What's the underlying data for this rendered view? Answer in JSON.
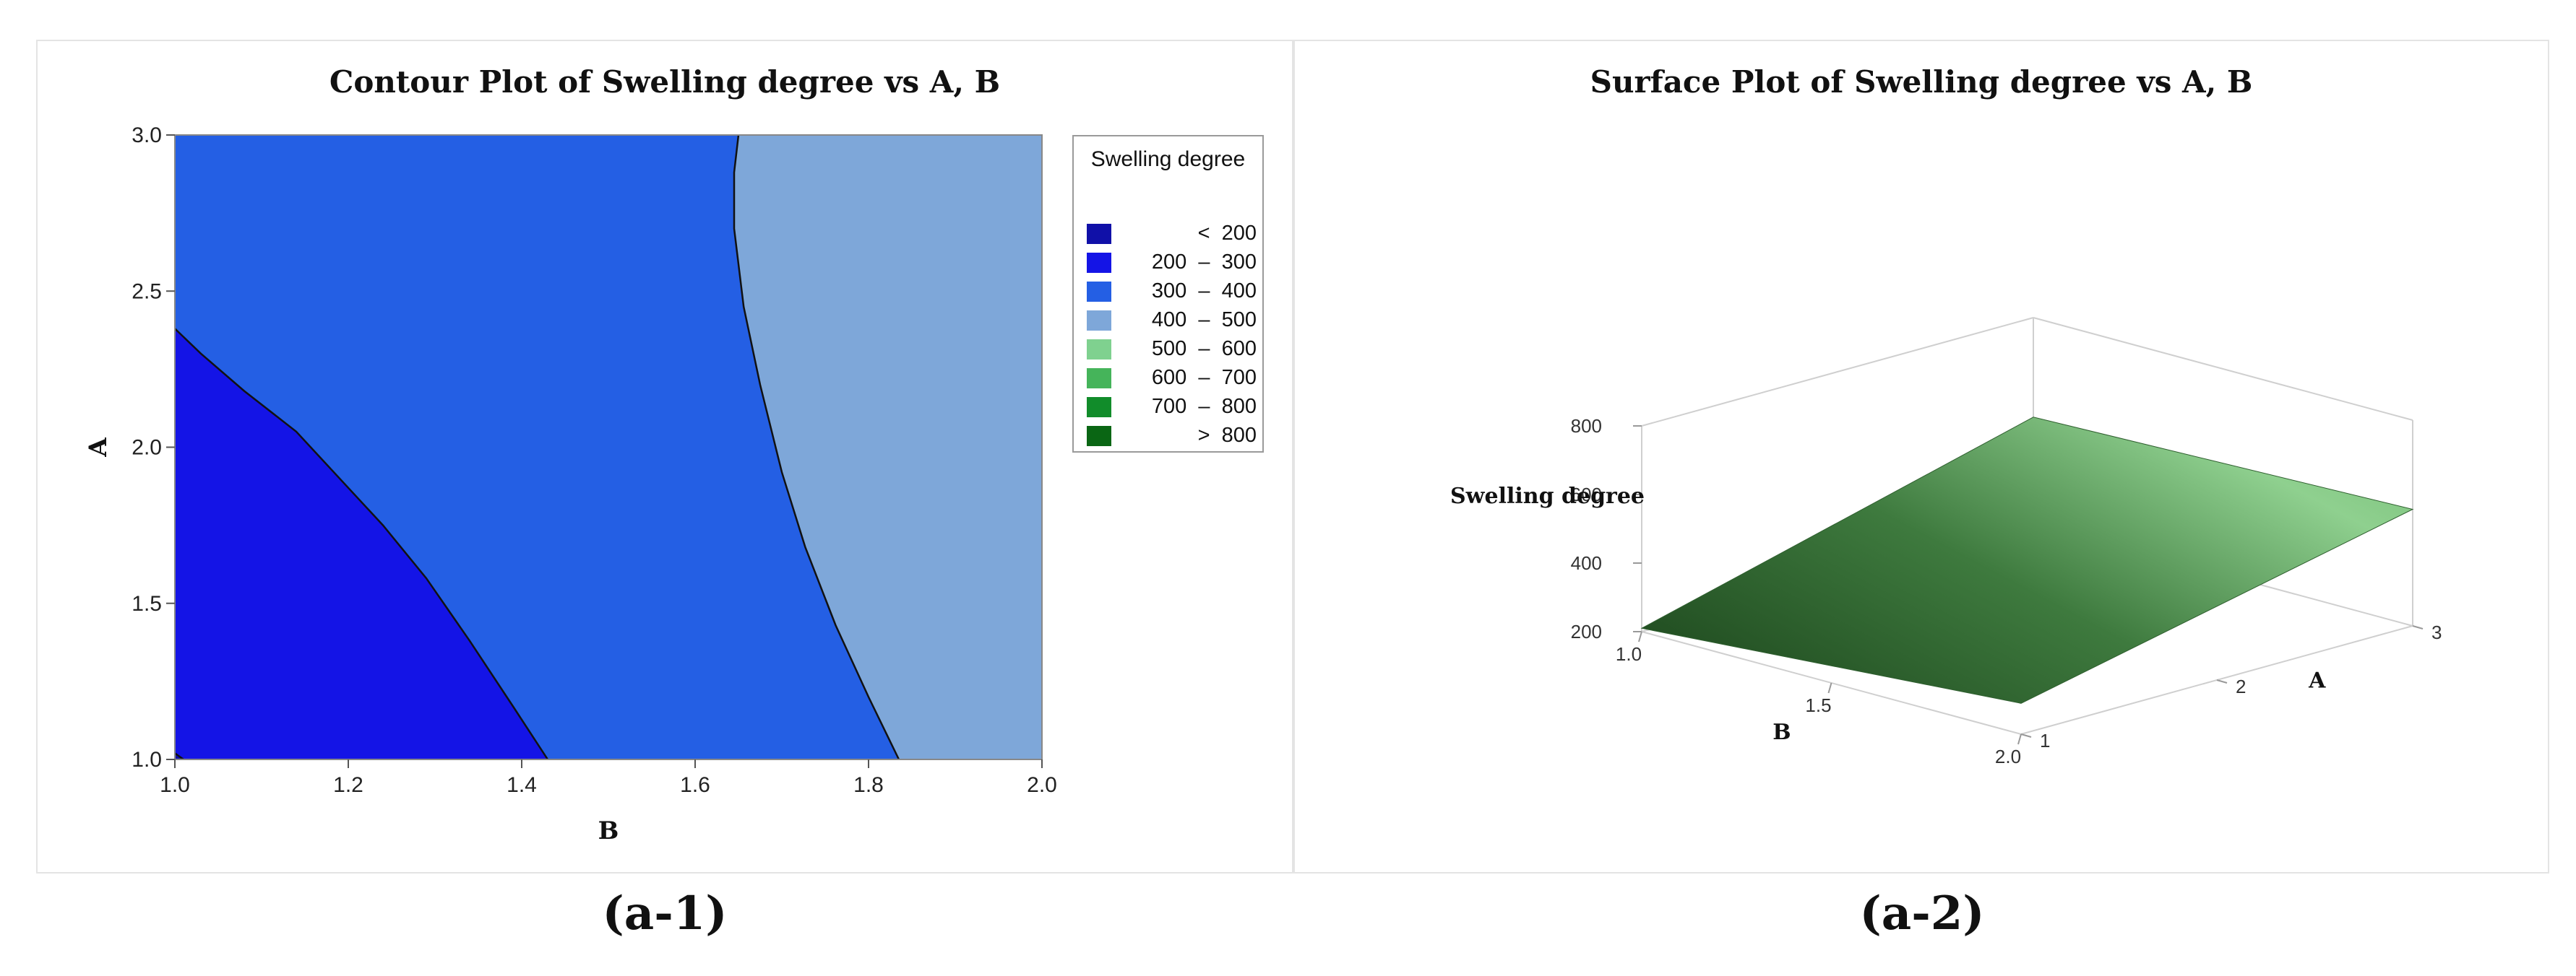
{
  "chart_data": [
    {
      "type": "contour",
      "title": "Contour Plot of Swelling degree vs A, B",
      "xlabel": "B",
      "ylabel": "A",
      "xlim": [
        1.0,
        2.0
      ],
      "ylim": [
        1.0,
        3.0
      ],
      "xticks": [
        "1.0",
        "1.2",
        "1.4",
        "1.6",
        "1.8",
        "2.0"
      ],
      "yticks": [
        "1.0",
        "1.5",
        "2.0",
        "2.5",
        "3.0"
      ],
      "legend": {
        "title": "Swelling degree",
        "placement": "right",
        "entries": [
          {
            "label": "<  200",
            "color": "#1010a8"
          },
          {
            "label": "200  –  300",
            "color": "#1414e6"
          },
          {
            "label": "300  –  400",
            "color": "#245fe4"
          },
          {
            "label": "400  –  500",
            "color": "#7ea7d9"
          },
          {
            "label": "500  –  600",
            "color": "#7fd18f"
          },
          {
            "label": "600  –  700",
            "color": "#45b45a"
          },
          {
            "label": "700  –  800",
            "color": "#118c2a"
          },
          {
            "label": ">  800",
            "color": "#0a6614"
          }
        ]
      },
      "contour_lines": [
        {
          "level": "200",
          "points": [
            [
              1.0,
              1.02
            ],
            [
              1.01,
              1.0
            ]
          ]
        },
        {
          "level": "300",
          "points": [
            [
              1.0,
              2.38
            ],
            [
              1.03,
              2.3
            ],
            [
              1.08,
              2.18
            ],
            [
              1.14,
              2.05
            ],
            [
              1.18,
              1.93
            ],
            [
              1.24,
              1.75
            ],
            [
              1.29,
              1.58
            ],
            [
              1.34,
              1.38
            ],
            [
              1.39,
              1.17
            ],
            [
              1.43,
              1.0
            ]
          ]
        },
        {
          "level": "400",
          "points": [
            [
              1.65,
              3.0
            ],
            [
              1.645,
              2.88
            ],
            [
              1.645,
              2.7
            ],
            [
              1.656,
              2.45
            ],
            [
              1.675,
              2.2
            ],
            [
              1.7,
              1.92
            ],
            [
              1.727,
              1.68
            ],
            [
              1.762,
              1.43
            ],
            [
              1.8,
              1.2
            ],
            [
              1.835,
              1.0
            ]
          ]
        }
      ]
    },
    {
      "type": "surface",
      "title": "Surface Plot of Swelling degree vs A, B",
      "xlabel": "B",
      "ylabel": "A",
      "zlabel": "Swelling degree",
      "xlim": [
        1.0,
        2.0
      ],
      "ylim": [
        1.0,
        3.0
      ],
      "zlim": [
        200,
        800
      ],
      "xticks": [
        "1.0",
        "1.5",
        "2.0"
      ],
      "yticks": [
        "1",
        "2",
        "3"
      ],
      "zticks": [
        "200",
        "400",
        "600",
        "800"
      ],
      "surface_corners": [
        {
          "B": 1.0,
          "A": 1.0,
          "z": 210
        },
        {
          "B": 2.0,
          "A": 1.0,
          "z": 290
        },
        {
          "B": 2.0,
          "A": 3.0,
          "z": 540
        },
        {
          "B": 1.0,
          "A": 3.0,
          "z": 510
        }
      ],
      "colors": {
        "dark": "#1f4a1f",
        "mid": "#3e7a3e",
        "light": "#8fd08f"
      }
    }
  ],
  "captions": {
    "left": "(a-1)",
    "right": "(a-2)"
  }
}
